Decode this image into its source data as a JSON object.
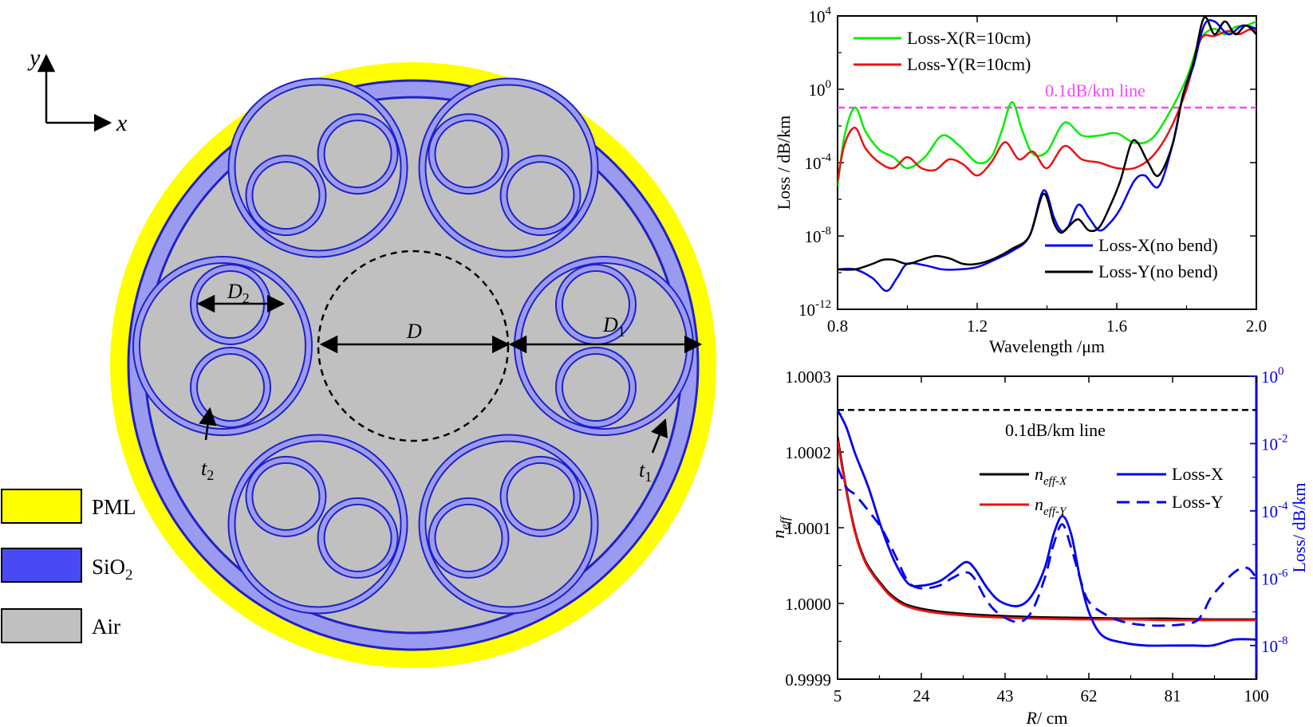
{
  "colors": {
    "pml": "#ffff00",
    "sio2": "#4a4af5",
    "sio2_fill": "#9a9bf0",
    "air": "#c0c0c0",
    "green": "#00ee00",
    "red": "#ee1111",
    "blue": "#0000ee",
    "black": "#000000",
    "magenta": "#ff44ff"
  },
  "structure": {
    "axes": {
      "x": "x",
      "y": "y"
    },
    "labels": {
      "D": "D",
      "D1": "D",
      "D1_sub": "1",
      "D2": "D",
      "D2_sub": "2",
      "t1": "t",
      "t1_sub": "1",
      "t2": "t",
      "t2_sub": "2"
    },
    "legend": [
      {
        "label": "PML",
        "color": "#ffff00"
      },
      {
        "label": "SiO",
        "sub": "2",
        "color": "#4a4af5"
      },
      {
        "label": "Air",
        "color": "#c0c0c0"
      }
    ]
  },
  "chart_data": [
    {
      "type": "line",
      "xlabel": "Wavelength /μm",
      "ylabel": "Loss / dB/km",
      "xlim": [
        0.8,
        2.0
      ],
      "xticks": [
        "0.8",
        "1.2",
        "1.6",
        "2.0"
      ],
      "ylog": true,
      "ylim_exp": [
        -12,
        4
      ],
      "yticks": [
        {
          "base": "10",
          "exp": "4"
        },
        {
          "base": "10",
          "exp": "0"
        },
        {
          "base": "10",
          "exp": "-4"
        },
        {
          "base": "10",
          "exp": "-8"
        },
        {
          "base": "10",
          "exp": "-12"
        }
      ],
      "reference": {
        "label": "0.1dB/km line",
        "value": 0.1
      },
      "series": [
        {
          "name": "Loss-X(R=10cm)",
          "color": "#00ee00",
          "x": [
            0.8,
            0.82,
            0.85,
            0.88,
            0.92,
            0.96,
            1.0,
            1.05,
            1.1,
            1.15,
            1.2,
            1.24,
            1.27,
            1.3,
            1.33,
            1.36,
            1.4,
            1.45,
            1.5,
            1.55,
            1.6,
            1.65,
            1.7,
            1.75,
            1.8,
            1.83,
            1.85,
            1.88,
            1.91,
            1.94,
            1.97,
            2.0
          ],
          "y": [
            5e-06,
            0.003,
            0.1,
            0.005,
            0.0005,
            0.0002,
            5e-05,
            0.0002,
            0.003,
            0.0008,
            0.0001,
            0.0002,
            0.005,
            0.2,
            0.005,
            0.0003,
            0.0004,
            0.015,
            0.003,
            0.003,
            0.004,
            0.0012,
            0.002,
            0.05,
            4,
            200,
            1000,
            2000,
            1000,
            2500,
            3000,
            5000
          ]
        },
        {
          "name": "Loss-Y(R=10cm)",
          "color": "#ee1111",
          "x": [
            0.8,
            0.82,
            0.85,
            0.88,
            0.92,
            0.96,
            1.0,
            1.04,
            1.08,
            1.12,
            1.16,
            1.2,
            1.24,
            1.28,
            1.32,
            1.36,
            1.4,
            1.45,
            1.5,
            1.55,
            1.6,
            1.65,
            1.7,
            1.75,
            1.8,
            1.84,
            1.88,
            1.92,
            1.95,
            1.98,
            2.0
          ],
          "y": [
            1e-05,
            0.001,
            0.008,
            0.0006,
            0.0001,
            5e-05,
            0.0002,
            5e-05,
            4e-05,
            0.00015,
            8e-05,
            2e-05,
            0.0001,
            0.0013,
            0.00015,
            0.0004,
            5e-05,
            0.0008,
            0.00015,
            0.0001,
            5e-05,
            5e-05,
            0.0002,
            0.005,
            1,
            500,
            800,
            1500,
            1000,
            1800,
            1500
          ]
        },
        {
          "name": "Loss-X(no bend)",
          "color": "#0000ee",
          "x": [
            0.8,
            0.85,
            0.9,
            0.94,
            0.97,
            1.0,
            1.05,
            1.1,
            1.15,
            1.2,
            1.25,
            1.3,
            1.35,
            1.39,
            1.42,
            1.44,
            1.46,
            1.49,
            1.52,
            1.55,
            1.58,
            1.61,
            1.65,
            1.68,
            1.72,
            1.76,
            1.79,
            1.82,
            1.85,
            1.88,
            1.92,
            1.96,
            2.0
          ],
          "y": [
            1.5e-10,
            1.5e-10,
            5e-11,
            1e-11,
            5e-11,
            3e-10,
            2.5e-10,
            1.5e-10,
            1.5e-10,
            2e-10,
            5e-10,
            1.5e-09,
            1e-08,
            3e-06,
            1e-07,
            2e-08,
            3e-08,
            5e-07,
            1e-07,
            2e-08,
            5e-08,
            3e-07,
            1e-05,
            2e-05,
            5e-06,
            0.001,
            0.5,
            20,
            3000,
            5000,
            1000,
            3000,
            2000
          ]
        },
        {
          "name": "Loss-Y(no bend)",
          "color": "#000000",
          "x": [
            0.8,
            0.85,
            0.9,
            0.93,
            0.96,
            1.0,
            1.04,
            1.08,
            1.12,
            1.16,
            1.2,
            1.25,
            1.3,
            1.35,
            1.39,
            1.42,
            1.44,
            1.46,
            1.49,
            1.52,
            1.55,
            1.58,
            1.61,
            1.64,
            1.66,
            1.69,
            1.72,
            1.76,
            1.79,
            1.82,
            1.85,
            1.88,
            1.91,
            1.94,
            1.97,
            2.0
          ],
          "y": [
            1.5e-10,
            1.5e-10,
            3e-10,
            5e-10,
            5e-10,
            3e-10,
            5e-10,
            8e-10,
            6e-10,
            3e-10,
            3e-10,
            6e-10,
            2e-09,
            1e-08,
            2e-06,
            5e-08,
            1.5e-08,
            3e-08,
            8e-08,
            2e-08,
            3e-08,
            4e-07,
            1e-05,
            0.001,
            0.0012,
            0.0001,
            2e-05,
            0.001,
            0.5,
            30,
            8000,
            1000,
            5000,
            1000,
            3000,
            1000
          ]
        }
      ]
    },
    {
      "type": "line",
      "xlabel": "R/ cm",
      "xlabel_italic": "R",
      "xlabel_rest": "/ cm",
      "ylabel": "n",
      "ylabel_sub": "eff",
      "y2label": "Loss/ dB/km",
      "xlim": [
        5,
        100
      ],
      "xticks": [
        "5",
        "24",
        "43",
        "62",
        "81",
        "100"
      ],
      "ylim": [
        0.9999,
        1.0003
      ],
      "yticks": [
        "1.0003",
        "1.0002",
        "1.0001",
        "1.0000",
        "0.9999"
      ],
      "y2log": true,
      "y2lim_exp": [
        -9,
        0
      ],
      "y2ticks": [
        {
          "base": "10",
          "exp": "0"
        },
        {
          "base": "10",
          "exp": "-2"
        },
        {
          "base": "10",
          "exp": "-4"
        },
        {
          "base": "10",
          "exp": "-6"
        },
        {
          "base": "10",
          "exp": "-8"
        }
      ],
      "reference": {
        "label": "0.1dB/km line",
        "value": 0.1
      },
      "series": [
        {
          "name": "n",
          "name_sub": "eff-X",
          "color": "#000000",
          "axis": "left",
          "x": [
            5,
            7,
            9,
            11,
            13,
            15,
            17,
            20,
            24,
            30,
            40,
            50,
            60,
            70,
            80,
            90,
            100
          ],
          "y": [
            1.00022,
            1.00015,
            1.000095,
            1.00006,
            1.00004,
            1.000025,
            1.000012,
            1.0,
            0.999993,
            0.999988,
            0.999984,
            0.999982,
            0.999981,
            0.99998,
            0.99998,
            0.999979,
            0.999979
          ]
        },
        {
          "name": "n",
          "name_sub": "eff-Y",
          "color": "#ee1111",
          "axis": "left",
          "x": [
            5,
            7,
            9,
            11,
            13,
            15,
            17,
            20,
            24,
            30,
            40,
            50,
            60,
            70,
            80,
            90,
            100
          ],
          "y": [
            1.000215,
            1.000148,
            1.000093,
            1.000058,
            1.000038,
            1.000023,
            1.00001,
            0.999998,
            0.999991,
            0.999986,
            0.999982,
            0.99998,
            0.999979,
            0.999979,
            0.999978,
            0.999978,
            0.999978
          ]
        },
        {
          "name": "Loss-X",
          "color": "#0000ee",
          "axis": "right",
          "dash": false,
          "x": [
            5,
            7,
            9,
            12,
            15,
            18,
            21,
            24,
            28,
            31,
            34,
            36,
            39,
            42,
            46,
            49,
            52,
            54,
            56,
            58,
            60,
            62,
            65,
            70,
            75,
            81,
            86,
            90,
            95,
            100
          ],
          "y": [
            0.1,
            0.03,
            0.005,
            0.0005,
            3e-05,
            3e-06,
            7e-07,
            6e-07,
            8e-07,
            1.5e-06,
            3e-06,
            2e-06,
            5e-07,
            2e-07,
            1.5e-07,
            3e-07,
            2e-06,
            2e-05,
            7e-05,
            2e-05,
            1e-06,
            1e-07,
            2e-08,
            1.2e-08,
            1e-08,
            1e-08,
            1e-08,
            1e-08,
            1.5e-08,
            1.5e-08
          ]
        },
        {
          "name": "Loss-Y",
          "color": "#0000ee",
          "axis": "right",
          "dash": true,
          "x": [
            5,
            7,
            9,
            12,
            15,
            18,
            21,
            24,
            28,
            31,
            34,
            36,
            39,
            42,
            46,
            49,
            52,
            54,
            56,
            58,
            60,
            62,
            66,
            70,
            75,
            81,
            86,
            88,
            90,
            95,
            98,
            100
          ],
          "y": [
            0.002,
            0.0005,
            0.0003,
            0.0001,
            3e-05,
            5e-06,
            8e-07,
            5e-07,
            6e-07,
            1e-06,
            1.5e-06,
            1e-06,
            2e-07,
            8e-08,
            5e-08,
            1e-07,
            1e-06,
            1e-05,
            4e-05,
            8e-06,
            1e-06,
            2e-07,
            8e-08,
            5e-08,
            4e-08,
            4e-08,
            5e-08,
            1e-07,
            3e-07,
            1.5e-06,
            2e-06,
            1e-06
          ]
        }
      ]
    }
  ]
}
